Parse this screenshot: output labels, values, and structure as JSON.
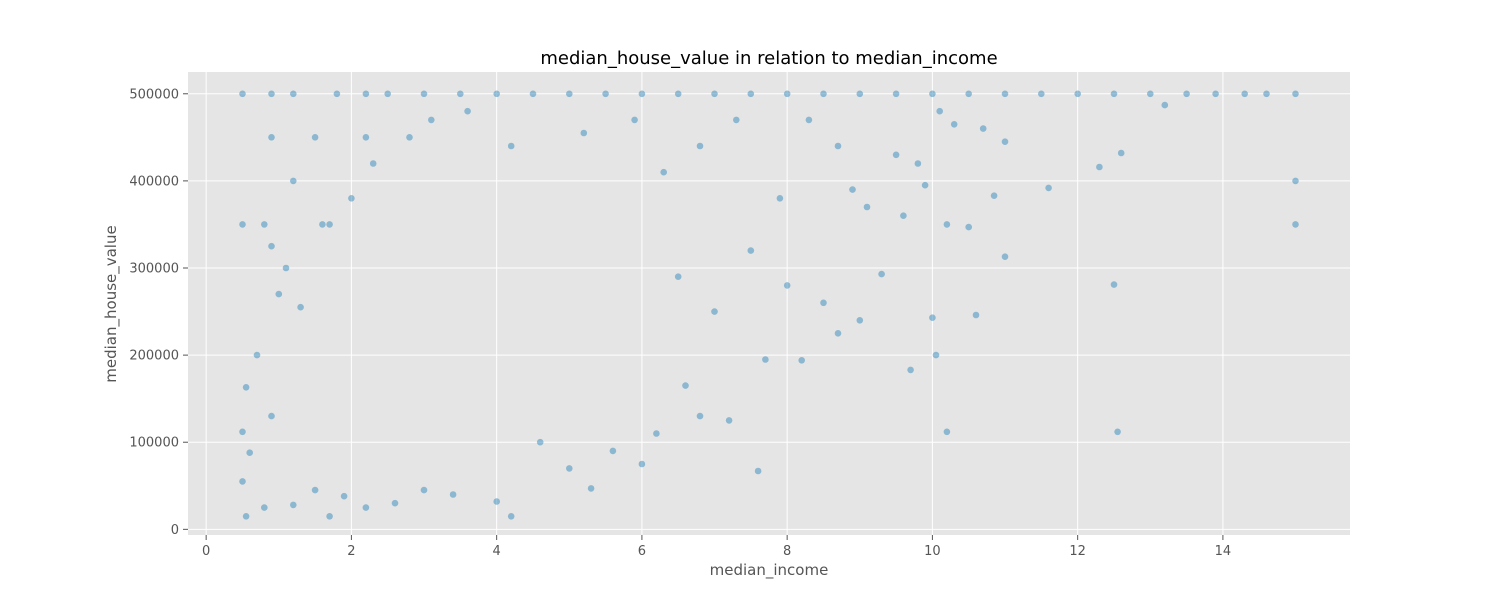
{
  "chart_data": {
    "type": "scatter",
    "title": "median_house_value in relation to median_income",
    "xlabel": "median_income",
    "ylabel": "median_house_value",
    "xlim": [
      -0.25,
      15.75
    ],
    "ylim": [
      -6500,
      525000
    ],
    "xticks": [
      "0",
      "2",
      "4",
      "6",
      "8",
      "10",
      "12",
      "14"
    ],
    "yticks": [
      "0",
      "100000",
      "200000",
      "300000",
      "400000",
      "500000"
    ],
    "grid": true,
    "legend": "none",
    "colors": {
      "point": "#348ABD",
      "background": "#E5E5E5",
      "grid": "#FFFFFF"
    },
    "point_alpha": 0.5,
    "series": [
      {
        "points": [
          [
            0.5,
            500001
          ],
          [
            0.9,
            500001
          ],
          [
            1.2,
            500001
          ],
          [
            1.8,
            500001
          ],
          [
            2.2,
            500001
          ],
          [
            2.5,
            500001
          ],
          [
            3.0,
            500001
          ],
          [
            3.5,
            500001
          ],
          [
            4.0,
            500001
          ],
          [
            4.5,
            500001
          ],
          [
            5.0,
            500001
          ],
          [
            5.5,
            500001
          ],
          [
            6.0,
            500001
          ],
          [
            6.5,
            500001
          ],
          [
            7.0,
            500001
          ],
          [
            7.5,
            500001
          ],
          [
            8.0,
            500001
          ],
          [
            8.5,
            500001
          ],
          [
            9.0,
            500001
          ],
          [
            9.5,
            500001
          ],
          [
            10.0,
            500001
          ],
          [
            10.5,
            500001
          ],
          [
            11.0,
            500001
          ],
          [
            11.5,
            500001
          ],
          [
            12.0,
            500001
          ],
          [
            12.5,
            500001
          ],
          [
            13.0,
            500001
          ],
          [
            13.5,
            500001
          ],
          [
            13.9,
            500001
          ],
          [
            14.3,
            500001
          ],
          [
            14.6,
            500001
          ],
          [
            15.0,
            500001
          ],
          [
            0.9,
            450000
          ],
          [
            1.5,
            450000
          ],
          [
            2.2,
            450000
          ],
          [
            2.8,
            450000
          ],
          [
            0.5,
            350000
          ],
          [
            0.8,
            350000
          ],
          [
            1.6,
            350000
          ],
          [
            1.7,
            350000
          ],
          [
            1.2,
            400000
          ],
          [
            0.9,
            325000
          ],
          [
            15.0,
            400000
          ],
          [
            15.0,
            350000
          ],
          [
            11.6,
            392000
          ],
          [
            12.3,
            416000
          ],
          [
            12.6,
            432000
          ],
          [
            13.2,
            487000
          ],
          [
            12.5,
            281000
          ],
          [
            12.55,
            112000
          ],
          [
            10.2,
            112000
          ],
          [
            10.05,
            200000
          ],
          [
            10.0,
            243000
          ],
          [
            10.6,
            246000
          ],
          [
            9.7,
            183000
          ],
          [
            11.0,
            313000
          ],
          [
            10.85,
            383000
          ],
          [
            9.3,
            293000
          ],
          [
            7.6,
            67000
          ],
          [
            5.3,
            47000
          ],
          [
            4.2,
            15000
          ],
          [
            0.55,
            15000
          ],
          [
            1.7,
            15000
          ],
          [
            0.5,
            55000
          ],
          [
            0.6,
            88000
          ],
          [
            0.5,
            112000
          ],
          [
            0.55,
            163000
          ],
          [
            0.7,
            200000
          ],
          [
            0.9,
            130000
          ],
          [
            1.0,
            270000
          ],
          [
            1.1,
            300000
          ],
          [
            1.3,
            255000
          ],
          [
            2.0,
            380000
          ],
          [
            2.3,
            420000
          ],
          [
            3.1,
            470000
          ],
          [
            3.6,
            480000
          ],
          [
            4.2,
            440000
          ],
          [
            5.2,
            455000
          ],
          [
            5.9,
            470000
          ],
          [
            6.3,
            410000
          ],
          [
            6.8,
            440000
          ],
          [
            7.3,
            470000
          ],
          [
            7.9,
            380000
          ],
          [
            8.3,
            470000
          ],
          [
            8.7,
            440000
          ],
          [
            8.9,
            390000
          ],
          [
            9.1,
            370000
          ],
          [
            9.5,
            430000
          ],
          [
            9.8,
            420000
          ],
          [
            10.1,
            480000
          ],
          [
            10.3,
            465000
          ],
          [
            10.7,
            460000
          ],
          [
            11.0,
            445000
          ],
          [
            6.0,
            75000
          ],
          [
            6.2,
            110000
          ],
          [
            6.5,
            290000
          ],
          [
            7.0,
            250000
          ],
          [
            7.5,
            320000
          ],
          [
            8.0,
            280000
          ],
          [
            8.5,
            260000
          ],
          [
            8.7,
            225000
          ],
          [
            8.2,
            194000
          ],
          [
            9.0,
            240000
          ],
          [
            9.6,
            360000
          ],
          [
            9.9,
            395000
          ],
          [
            10.2,
            350000
          ],
          [
            10.5,
            347000
          ],
          [
            7.7,
            195000
          ],
          [
            7.2,
            125000
          ],
          [
            6.8,
            130000
          ],
          [
            6.6,
            165000
          ],
          [
            5.6,
            90000
          ],
          [
            5.0,
            70000
          ],
          [
            4.6,
            100000
          ],
          [
            4.0,
            32000
          ],
          [
            3.4,
            40000
          ],
          [
            3.0,
            45000
          ],
          [
            2.6,
            30000
          ],
          [
            2.2,
            25000
          ],
          [
            1.9,
            38000
          ],
          [
            1.5,
            45000
          ],
          [
            1.2,
            28000
          ],
          [
            0.8,
            25000
          ]
        ]
      }
    ]
  }
}
